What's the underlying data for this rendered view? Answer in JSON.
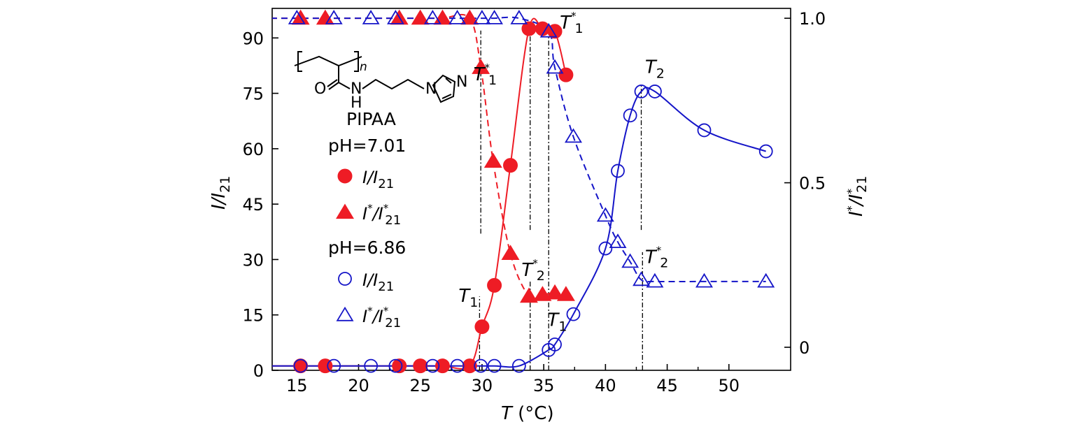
{
  "chart_data": {
    "type": "scatter",
    "xlabel": {
      "italic": "T",
      "rest": " (°C)"
    },
    "ylabel_left": {
      "base": "I/I",
      "sub": "21"
    },
    "ylabel_right": {
      "base": "I",
      "sup": "*",
      "mid": "/I",
      "sup2": "*",
      "sub": "21"
    },
    "xlim": [
      13,
      55
    ],
    "ylim_left": [
      0,
      98
    ],
    "ylim_right": [
      -0.07,
      1.03
    ],
    "x_ticks": [
      15,
      20,
      25,
      30,
      35,
      40,
      45,
      50
    ],
    "y_ticks_left": [
      0,
      15,
      30,
      45,
      60,
      75,
      90
    ],
    "y_ticks_right": [
      {
        "value": 0,
        "label": "0"
      },
      {
        "value": 0.5,
        "label": "0.5"
      },
      {
        "value": 1.0,
        "label": "1.0"
      }
    ],
    "compound_label": "PIPAA",
    "compound_subscript": "n",
    "legend_groups": [
      {
        "title": "pH=7.01"
      },
      {
        "title": "pH=6.86"
      }
    ],
    "legend_entries": [
      {
        "series": 0,
        "label_base": "I/I",
        "label_sub": "21"
      },
      {
        "series": 1,
        "label_base": "I",
        "label_sup": "*",
        "label_mid": "/I",
        "label_sup2": "*",
        "label_sub": "21"
      },
      {
        "series": 2,
        "label_base": "I/I",
        "label_sub": "21"
      },
      {
        "series": 3,
        "label_base": "I",
        "label_sup": "*",
        "label_mid": "/I",
        "label_sup2": "*",
        "label_sub": "21"
      }
    ],
    "series": [
      {
        "axis": "left",
        "marker": "circle",
        "filled": true,
        "color": "#ee1c25",
        "line": "solid",
        "points": [
          [
            15.3,
            1.2
          ],
          [
            17.3,
            1.2
          ],
          [
            23.3,
            1.2
          ],
          [
            25,
            1.2
          ],
          [
            26.8,
            1.2
          ],
          [
            29,
            1.2
          ],
          [
            30,
            11.8
          ],
          [
            31,
            23
          ],
          [
            32.3,
            55.5
          ],
          [
            33.8,
            92.5
          ],
          [
            34.9,
            92.5
          ],
          [
            35.9,
            91.8
          ],
          [
            36.8,
            80
          ]
        ]
      },
      {
        "axis": "right",
        "marker": "triangle",
        "filled": true,
        "color": "#ee1c25",
        "line": "dashed",
        "points": [
          [
            15.3,
            1.0
          ],
          [
            17.3,
            1.0
          ],
          [
            23.3,
            1.0
          ],
          [
            25,
            1.0
          ],
          [
            26.8,
            1.0
          ],
          [
            29,
            1.0
          ],
          [
            29.9,
            0.85
          ],
          [
            30.9,
            0.565
          ],
          [
            32.3,
            0.285
          ],
          [
            33.8,
            0.155
          ],
          [
            34.9,
            0.16
          ],
          [
            35.9,
            0.165
          ],
          [
            36.8,
            0.16
          ]
        ]
      },
      {
        "axis": "left",
        "marker": "circle",
        "filled": false,
        "color": "#1515c8",
        "line": "solid",
        "points": [
          [
            15.3,
            1.2
          ],
          [
            18,
            1.2
          ],
          [
            21,
            1.2
          ],
          [
            23,
            1.2
          ],
          [
            26,
            1.2
          ],
          [
            28,
            1.2
          ],
          [
            29.9,
            1.2
          ],
          [
            31,
            1.2
          ],
          [
            33,
            1.2
          ],
          [
            35.4,
            5.5
          ],
          [
            35.9,
            7
          ],
          [
            37.4,
            15.2
          ],
          [
            40,
            33
          ],
          [
            41,
            54
          ],
          [
            42,
            69
          ],
          [
            42.9,
            75.5
          ],
          [
            44,
            75.5
          ],
          [
            48,
            65
          ],
          [
            53,
            59.3
          ]
        ]
      },
      {
        "axis": "right",
        "marker": "triangle",
        "filled": false,
        "color": "#1515c8",
        "line": "dashed",
        "points": [
          [
            15,
            1.0
          ],
          [
            18,
            1.0
          ],
          [
            21,
            1.0
          ],
          [
            23,
            1.0
          ],
          [
            26,
            1.0
          ],
          [
            28,
            1.0
          ],
          [
            30,
            1.0
          ],
          [
            31,
            1.0
          ],
          [
            33,
            1.0
          ],
          [
            35.4,
            0.96
          ],
          [
            35.9,
            0.85
          ],
          [
            37.4,
            0.64
          ],
          [
            40,
            0.4
          ],
          [
            41,
            0.32
          ],
          [
            42,
            0.26
          ],
          [
            42.9,
            0.205
          ],
          [
            44,
            0.2
          ],
          [
            48,
            0.2
          ],
          [
            53,
            0.2
          ]
        ]
      }
    ],
    "annotations": [
      {
        "base": "T",
        "sup": "*",
        "sub": "1",
        "x": 29.3,
        "y_left": 78.5,
        "vline_x": 29.9,
        "vline_y": [
          37,
          92
        ]
      },
      {
        "base": "T",
        "sup": "*",
        "sub": "1",
        "x": 36.3,
        "y_left": 92.5,
        "vline_x": 35.4,
        "vline_y": [
          0,
          93
        ]
      },
      {
        "base": "T",
        "sub": "1",
        "x": 28.1,
        "y_left": 18.5,
        "vline_x": 29.8,
        "vline_y": [
          0,
          20
        ]
      },
      {
        "base": "T",
        "sup": "*",
        "sub": "2",
        "x": 33.2,
        "y_left": 25.5,
        "vline_x": 33.9,
        "vline_y": [
          0,
          24
        ]
      },
      {
        "base": "T",
        "sub": "1",
        "x": 35.3,
        "y_left": 12,
        "vline_x": 33.9,
        "vline_y": [
          38,
          92
        ]
      },
      {
        "base": "T",
        "sub": "2",
        "x": 43.2,
        "y_left": 80.5,
        "vline_x": 42.9,
        "vline_y": [
          38,
          77
        ]
      },
      {
        "base": "T",
        "sup": "*",
        "sub": "2",
        "x": 43.2,
        "y_left": 29,
        "vline_x": 43,
        "vline_y": [
          0,
          32
        ]
      }
    ]
  }
}
